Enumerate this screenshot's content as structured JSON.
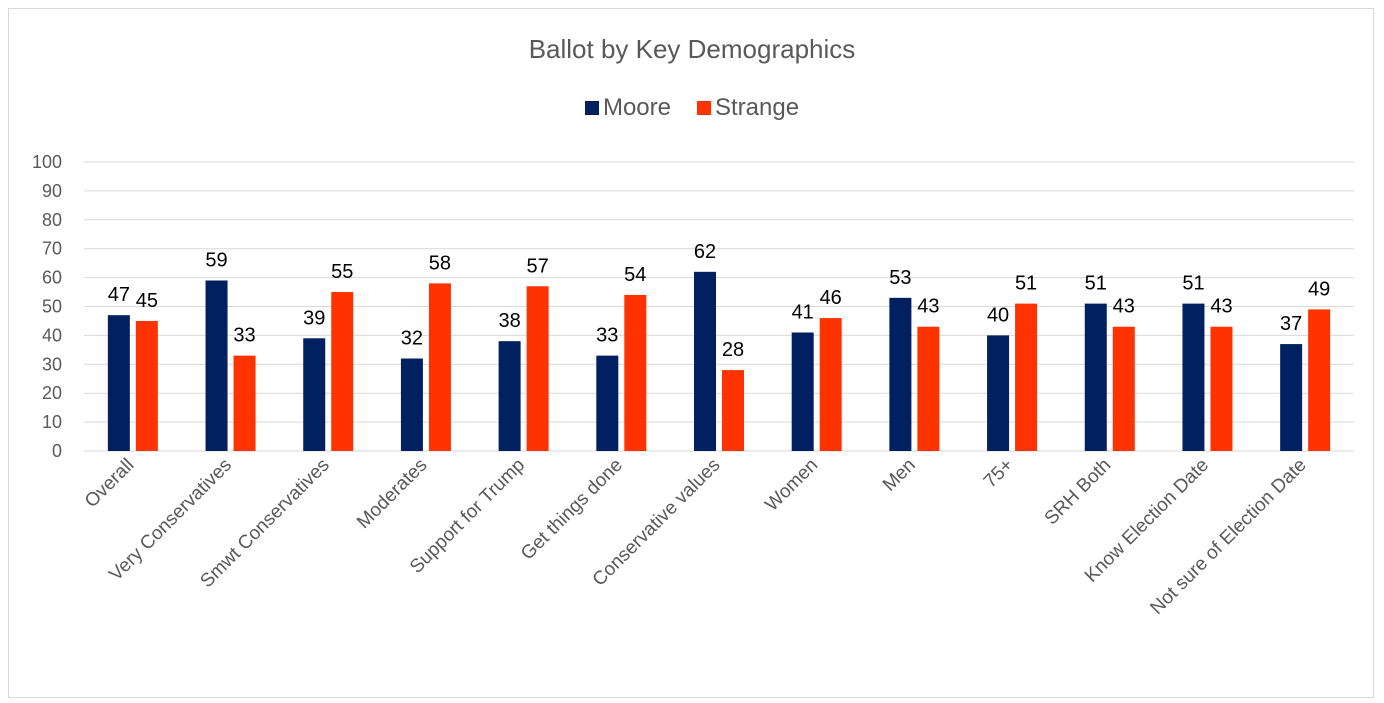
{
  "chart_data": {
    "type": "bar",
    "title": "Ballot by Key Demographics",
    "categories": [
      "Overall",
      "Very Conservatives",
      "Smwt Conservatives",
      "Moderates",
      "Support for Trump",
      "Get things done",
      "Conservative values",
      "Women",
      "Men",
      "75+",
      "SRH Both",
      "Know Election Date",
      "Not sure of Election Date"
    ],
    "series": [
      {
        "name": "Moore",
        "color": "#002060",
        "values": [
          47,
          59,
          39,
          32,
          38,
          33,
          62,
          41,
          53,
          40,
          51,
          51,
          37
        ]
      },
      {
        "name": "Strange",
        "color": "#ff3300",
        "values": [
          45,
          33,
          55,
          58,
          57,
          54,
          28,
          46,
          43,
          51,
          43,
          43,
          49
        ]
      }
    ],
    "yticks": [
      "0",
      "10",
      "20",
      "30",
      "40",
      "50",
      "60",
      "70",
      "80",
      "90",
      "100"
    ],
    "ylim": [
      0,
      100
    ],
    "grid": true,
    "legend": "top-center",
    "xlabel": "",
    "ylabel": ""
  }
}
